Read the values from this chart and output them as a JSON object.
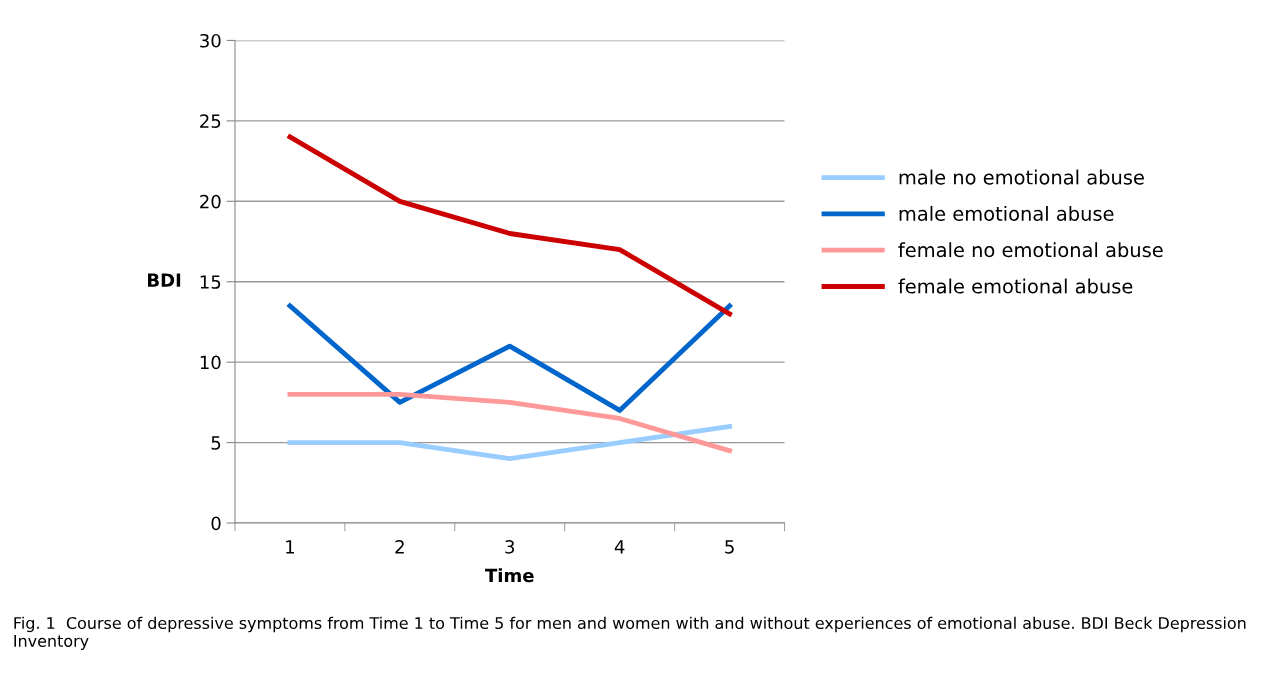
{
  "chart_data": {
    "type": "line",
    "xlabel": "Time",
    "ylabel": "BDI",
    "categories": [
      "1",
      "2",
      "3",
      "4",
      "5"
    ],
    "series": [
      {
        "name": "male no emotional abuse",
        "color": "#99ccff",
        "values": [
          5,
          5,
          4,
          5,
          6
        ]
      },
      {
        "name": "male emotional abuse",
        "color": "#0066cc",
        "values": [
          13.5,
          7.5,
          11,
          7,
          13.5
        ]
      },
      {
        "name": "female no emotional abuse",
        "color": "#ff9999",
        "values": [
          8,
          8,
          7.5,
          6.5,
          4.5
        ]
      },
      {
        "name": "female emotional abuse",
        "color": "#cc0000",
        "values": [
          24,
          20,
          18,
          17,
          13
        ]
      }
    ],
    "ylim": [
      0,
      30
    ],
    "yticks": [
      0,
      5,
      10,
      15,
      20,
      25,
      30
    ],
    "grid": "y",
    "legend": "right",
    "marker": "none",
    "line_style": "solid",
    "annotations": [
      "Fig. 1  Course of depressive symptoms from Time 1 to Time 5 for men and women with and without experiences of emotional abuse. BDI Beck Depression Inventory"
    ]
  }
}
